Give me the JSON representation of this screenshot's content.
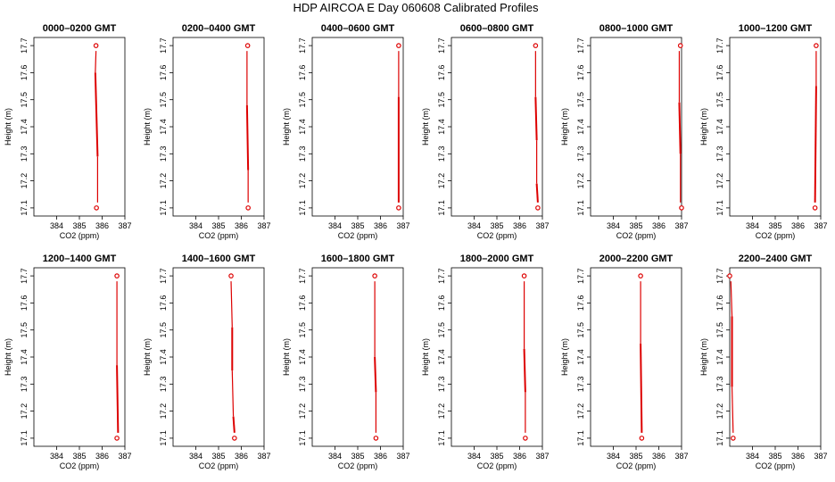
{
  "figure_title": "HDP AIRCOA E  Day 060608  Calibrated Profiles",
  "chart_data": [
    {
      "type": "line",
      "title": "0000–0200 GMT",
      "xlabel": "CO2 (ppm)",
      "ylabel": "Height (m)",
      "xlim": [
        383,
        387
      ],
      "ylim": [
        17.07,
        17.73
      ],
      "xticks": [
        384,
        385,
        386,
        387
      ],
      "yticks": [
        17.1,
        17.2,
        17.3,
        17.4,
        17.5,
        17.6,
        17.7
      ],
      "segments": [
        [
          385.73,
          17.68,
          385.7,
          17.6
        ],
        [
          385.7,
          17.6,
          385.8,
          17.29
        ],
        [
          385.8,
          17.29,
          385.8,
          17.12
        ]
      ],
      "endpoints": [
        [
          385.73,
          17.7
        ],
        [
          385.75,
          17.1
        ]
      ]
    },
    {
      "type": "line",
      "title": "0200–0400 GMT",
      "xlabel": "CO2 (ppm)",
      "ylabel": "Height (m)",
      "xlim": [
        383,
        387
      ],
      "ylim": [
        17.07,
        17.73
      ],
      "xticks": [
        384,
        385,
        386,
        387
      ],
      "yticks": [
        17.1,
        17.2,
        17.3,
        17.4,
        17.5,
        17.6,
        17.7
      ],
      "segments": [
        [
          386.25,
          17.68,
          386.25,
          17.48
        ],
        [
          386.25,
          17.48,
          386.3,
          17.24
        ],
        [
          386.3,
          17.24,
          386.3,
          17.12
        ]
      ],
      "endpoints": [
        [
          386.28,
          17.7
        ],
        [
          386.3,
          17.1
        ]
      ]
    },
    {
      "type": "line",
      "title": "0400–0600 GMT",
      "xlabel": "CO2 (ppm)",
      "ylabel": "Height (m)",
      "xlim": [
        383,
        387
      ],
      "ylim": [
        17.07,
        17.73
      ],
      "xticks": [
        384,
        385,
        386,
        387
      ],
      "yticks": [
        17.1,
        17.2,
        17.3,
        17.4,
        17.5,
        17.6,
        17.7
      ],
      "segments": [
        [
          386.8,
          17.68,
          386.8,
          17.51
        ],
        [
          386.8,
          17.51,
          386.8,
          17.12
        ]
      ],
      "endpoints": [
        [
          386.8,
          17.7
        ],
        [
          386.8,
          17.1
        ]
      ]
    },
    {
      "type": "line",
      "title": "0600–0800 GMT",
      "xlabel": "CO2 (ppm)",
      "ylabel": "Height (m)",
      "xlim": [
        383,
        387
      ],
      "ylim": [
        17.07,
        17.73
      ],
      "xticks": [
        384,
        385,
        386,
        387
      ],
      "yticks": [
        17.1,
        17.2,
        17.3,
        17.4,
        17.5,
        17.6,
        17.7
      ],
      "segments": [
        [
          386.7,
          17.68,
          386.7,
          17.51
        ],
        [
          386.7,
          17.51,
          386.75,
          17.35
        ],
        [
          386.75,
          17.35,
          386.75,
          17.19
        ],
        [
          386.75,
          17.19,
          386.8,
          17.12
        ]
      ],
      "endpoints": [
        [
          386.7,
          17.7
        ],
        [
          386.8,
          17.1
        ]
      ]
    },
    {
      "type": "line",
      "title": "0800–1000 GMT",
      "xlabel": "CO2 (ppm)",
      "ylabel": "Height (m)",
      "xlim": [
        383,
        387
      ],
      "ylim": [
        17.07,
        17.73
      ],
      "xticks": [
        384,
        385,
        386,
        387
      ],
      "yticks": [
        17.1,
        17.2,
        17.3,
        17.4,
        17.5,
        17.6,
        17.7
      ],
      "segments": [
        [
          386.9,
          17.68,
          386.9,
          17.49
        ],
        [
          386.9,
          17.49,
          386.95,
          17.3
        ],
        [
          386.95,
          17.3,
          386.95,
          17.12
        ]
      ],
      "endpoints": [
        [
          386.95,
          17.7
        ],
        [
          387.0,
          17.1
        ]
      ]
    },
    {
      "type": "line",
      "title": "1000–1200 GMT",
      "xlabel": "CO2 (ppm)",
      "ylabel": "Height (m)",
      "xlim": [
        383,
        387
      ],
      "ylim": [
        17.07,
        17.73
      ],
      "xticks": [
        384,
        385,
        386,
        387
      ],
      "yticks": [
        17.1,
        17.2,
        17.3,
        17.4,
        17.5,
        17.6,
        17.7
      ],
      "segments": [
        [
          386.8,
          17.68,
          386.8,
          17.55
        ],
        [
          386.8,
          17.55,
          386.75,
          17.12
        ]
      ],
      "endpoints": [
        [
          386.8,
          17.7
        ],
        [
          386.75,
          17.1
        ]
      ]
    },
    {
      "type": "line",
      "title": "1200–1400 GMT",
      "xlabel": "CO2 (ppm)",
      "ylabel": "Height (m)",
      "xlim": [
        383,
        387
      ],
      "ylim": [
        17.07,
        17.73
      ],
      "xticks": [
        384,
        385,
        386,
        387
      ],
      "yticks": [
        17.1,
        17.2,
        17.3,
        17.4,
        17.5,
        17.6,
        17.7
      ],
      "segments": [
        [
          386.65,
          17.68,
          386.65,
          17.37
        ],
        [
          386.65,
          17.37,
          386.7,
          17.12
        ]
      ],
      "endpoints": [
        [
          386.65,
          17.7
        ],
        [
          386.65,
          17.1
        ]
      ]
    },
    {
      "type": "line",
      "title": "1400–1600 GMT",
      "xlabel": "CO2 (ppm)",
      "ylabel": "Height (m)",
      "xlim": [
        383,
        387
      ],
      "ylim": [
        17.07,
        17.73
      ],
      "xticks": [
        384,
        385,
        386,
        387
      ],
      "yticks": [
        17.1,
        17.2,
        17.3,
        17.4,
        17.5,
        17.6,
        17.7
      ],
      "segments": [
        [
          385.55,
          17.68,
          385.6,
          17.51
        ],
        [
          385.6,
          17.51,
          385.6,
          17.35
        ],
        [
          385.6,
          17.35,
          385.65,
          17.18
        ],
        [
          385.65,
          17.18,
          385.7,
          17.12
        ]
      ],
      "endpoints": [
        [
          385.55,
          17.7
        ],
        [
          385.7,
          17.1
        ]
      ]
    },
    {
      "type": "line",
      "title": "1600–1800 GMT",
      "xlabel": "CO2 (ppm)",
      "ylabel": "Height (m)",
      "xlim": [
        383,
        387
      ],
      "ylim": [
        17.07,
        17.73
      ],
      "xticks": [
        384,
        385,
        386,
        387
      ],
      "yticks": [
        17.1,
        17.2,
        17.3,
        17.4,
        17.5,
        17.6,
        17.7
      ],
      "segments": [
        [
          385.75,
          17.68,
          385.75,
          17.4
        ],
        [
          385.75,
          17.4,
          385.8,
          17.27
        ],
        [
          385.8,
          17.27,
          385.8,
          17.12
        ]
      ],
      "endpoints": [
        [
          385.75,
          17.7
        ],
        [
          385.8,
          17.1
        ]
      ]
    },
    {
      "type": "line",
      "title": "1800–2000 GMT",
      "xlabel": "CO2 (ppm)",
      "ylabel": "Height (m)",
      "xlim": [
        383,
        387
      ],
      "ylim": [
        17.07,
        17.73
      ],
      "xticks": [
        384,
        385,
        386,
        387
      ],
      "yticks": [
        17.1,
        17.2,
        17.3,
        17.4,
        17.5,
        17.6,
        17.7
      ],
      "segments": [
        [
          386.2,
          17.68,
          386.2,
          17.43
        ],
        [
          386.2,
          17.43,
          386.25,
          17.27
        ],
        [
          386.25,
          17.27,
          386.25,
          17.12
        ]
      ],
      "endpoints": [
        [
          386.2,
          17.7
        ],
        [
          386.25,
          17.1
        ]
      ]
    },
    {
      "type": "line",
      "title": "2000–2200 GMT",
      "xlabel": "CO2 (ppm)",
      "ylabel": "Height (m)",
      "xlim": [
        383,
        387
      ],
      "ylim": [
        17.07,
        17.73
      ],
      "xticks": [
        384,
        385,
        386,
        387
      ],
      "yticks": [
        17.1,
        17.2,
        17.3,
        17.4,
        17.5,
        17.6,
        17.7
      ],
      "segments": [
        [
          385.2,
          17.68,
          385.2,
          17.45
        ],
        [
          385.2,
          17.45,
          385.25,
          17.12
        ]
      ],
      "endpoints": [
        [
          385.2,
          17.7
        ],
        [
          385.25,
          17.1
        ]
      ]
    },
    {
      "type": "line",
      "title": "2200–2400 GMT",
      "xlabel": "CO2 (ppm)",
      "ylabel": "Height (m)",
      "xlim": [
        383,
        387
      ],
      "ylim": [
        17.07,
        17.73
      ],
      "xticks": [
        384,
        385,
        386,
        387
      ],
      "yticks": [
        17.1,
        17.2,
        17.3,
        17.4,
        17.5,
        17.6,
        17.7
      ],
      "segments": [
        [
          383.05,
          17.68,
          383.1,
          17.55
        ],
        [
          383.1,
          17.55,
          383.1,
          17.29
        ],
        [
          383.1,
          17.29,
          383.15,
          17.12
        ]
      ],
      "endpoints": [
        [
          383.0,
          17.7
        ],
        [
          383.15,
          17.1
        ]
      ]
    }
  ],
  "colors": {
    "profile_line": "#dd0000",
    "axis": "#000000",
    "background": "#ffffff"
  }
}
